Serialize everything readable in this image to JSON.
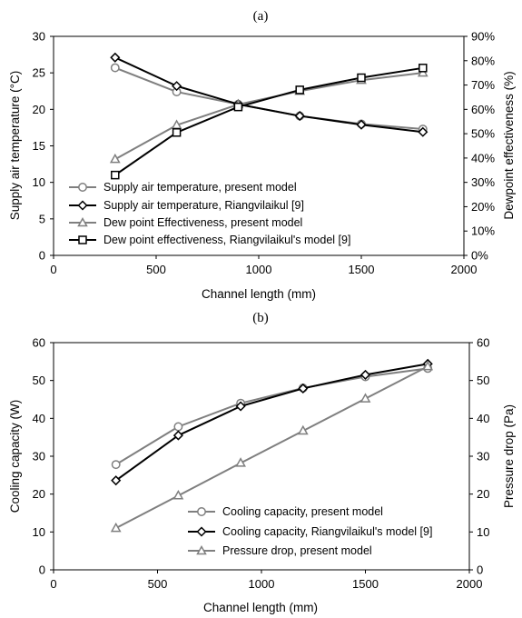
{
  "chart_data": [
    {
      "panel": "(a)",
      "type": "line",
      "title": "",
      "xlabel": "Channel length (mm)",
      "ylabel": "Supply air temperature (°C)",
      "y2label": "Dewpoint effectiveness (%)",
      "xlim": [
        0,
        2000
      ],
      "ylim": [
        0,
        30
      ],
      "y2lim": [
        0,
        0.9
      ],
      "xticks": [
        "0",
        "500",
        "1000",
        "1500",
        "2000"
      ],
      "yticks": [
        "0",
        "5",
        "10",
        "15",
        "20",
        "25",
        "30"
      ],
      "y2ticks": [
        "0%",
        "10%",
        "20%",
        "30%",
        "40%",
        "50%",
        "60%",
        "70%",
        "80%",
        "90%"
      ],
      "grid": false,
      "legend_position": "lower-left",
      "series": [
        {
          "name": "Supply air temperature, present model",
          "axis": "left",
          "marker": "circle",
          "color": "#7f7f7f",
          "x": [
            300,
            600,
            900,
            1200,
            1500,
            1800
          ],
          "values": [
            25.7,
            22.4,
            20.7,
            19.1,
            18.0,
            17.3
          ]
        },
        {
          "name": "Supply air temperature, Riangvilaikul [9]",
          "axis": "left",
          "marker": "diamond",
          "color": "#000000",
          "x": [
            300,
            600,
            900,
            1200,
            1500,
            1800
          ],
          "values": [
            27.1,
            23.2,
            20.7,
            19.1,
            17.9,
            16.9
          ]
        },
        {
          "name": "Dew point Effectiveness, present model",
          "axis": "right",
          "marker": "triangle",
          "color": "#7f7f7f",
          "x": [
            300,
            600,
            900,
            1200,
            1500,
            1800
          ],
          "values": [
            0.395,
            0.535,
            0.62,
            0.675,
            0.72,
            0.75
          ]
        },
        {
          "name": "Dew point effectiveness, Riangvilaikul's model [9]",
          "axis": "right",
          "marker": "square",
          "color": "#000000",
          "x": [
            300,
            600,
            900,
            1200,
            1500,
            1800
          ],
          "values": [
            0.33,
            0.505,
            0.61,
            0.68,
            0.73,
            0.77
          ]
        }
      ]
    },
    {
      "panel": "(b)",
      "type": "line",
      "title": "",
      "xlabel": "Channel length (mm)",
      "ylabel": "Cooling capacity (W)",
      "y2label": "Pressure drop (Pa)",
      "xlim": [
        0,
        2000
      ],
      "ylim": [
        0,
        60
      ],
      "y2lim": [
        0,
        60
      ],
      "xticks": [
        "0",
        "500",
        "1000",
        "1500",
        "2000"
      ],
      "yticks": [
        "0",
        "10",
        "20",
        "30",
        "40",
        "50",
        "60"
      ],
      "y2ticks": [
        "0",
        "10",
        "20",
        "30",
        "40",
        "50",
        "60"
      ],
      "grid": false,
      "legend_position": "lower-right",
      "series": [
        {
          "name": "Cooling capacity, present model",
          "axis": "left",
          "marker": "circle",
          "color": "#7f7f7f",
          "x": [
            300,
            600,
            900,
            1200,
            1500,
            1800
          ],
          "values": [
            27.8,
            37.8,
            44.0,
            48.0,
            51.0,
            53.2
          ]
        },
        {
          "name": "Cooling capacity, Riangvilaikul's model [9]",
          "axis": "left",
          "marker": "diamond",
          "color": "#000000",
          "x": [
            300,
            600,
            900,
            1200,
            1500,
            1800
          ],
          "values": [
            23.6,
            35.5,
            43.2,
            47.9,
            51.5,
            54.4
          ]
        },
        {
          "name": "Pressure drop, present model",
          "axis": "right",
          "marker": "triangle",
          "color": "#7f7f7f",
          "x": [
            300,
            600,
            900,
            1200,
            1500,
            1800
          ],
          "values": [
            11.0,
            19.6,
            28.2,
            36.7,
            45.2,
            53.7
          ]
        }
      ]
    }
  ]
}
